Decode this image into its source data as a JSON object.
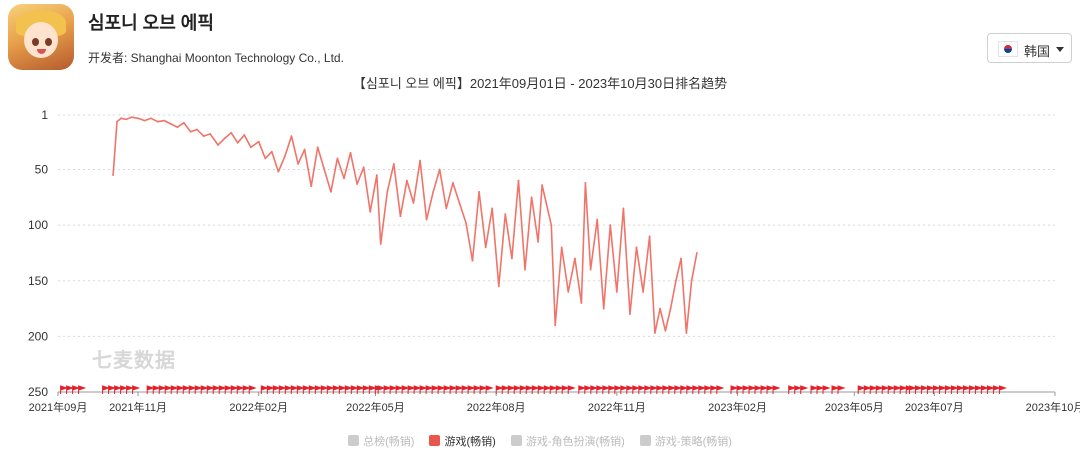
{
  "header": {
    "app_title": "심포니 오브 에픽",
    "developer": "开发者: Shanghai Moonton Technology Co., Ltd.",
    "country": "韩国"
  },
  "chart_data": {
    "type": "line",
    "title": "【심포니 오브 에픽】2021年09月01日 - 2023年10月30日排名趋势",
    "xlabel": "",
    "ylabel": "",
    "y_reversed": true,
    "ylim": [
      1,
      250
    ],
    "y_ticks": [
      "1",
      "50",
      "100",
      "150",
      "200",
      "250"
    ],
    "x_ticks": [
      "2021年09月",
      "2021年11月",
      "2022年02月",
      "2022年05月",
      "2022年08月",
      "2022年11月",
      "2023年02月",
      "2023年05月",
      "2023年07月",
      "2023年10月"
    ],
    "grid": true,
    "line_color": "#f07469",
    "series": [
      {
        "name": "游戏(畅销)",
        "points": [
          [
            "2021-10-13",
            55
          ],
          [
            "2021-10-16",
            7
          ],
          [
            "2021-10-19",
            4
          ],
          [
            "2021-10-23",
            5
          ],
          [
            "2021-10-27",
            3
          ],
          [
            "2021-11-01",
            4
          ],
          [
            "2021-11-06",
            6
          ],
          [
            "2021-11-11",
            4
          ],
          [
            "2021-11-16",
            7
          ],
          [
            "2021-11-21",
            6
          ],
          [
            "2021-11-26",
            9
          ],
          [
            "2021-12-01",
            12
          ],
          [
            "2021-12-06",
            8
          ],
          [
            "2021-12-11",
            16
          ],
          [
            "2021-12-16",
            14
          ],
          [
            "2021-12-21",
            20
          ],
          [
            "2021-12-26",
            18
          ],
          [
            "2022-01-01",
            28
          ],
          [
            "2022-01-06",
            22
          ],
          [
            "2022-01-11",
            17
          ],
          [
            "2022-01-16",
            26
          ],
          [
            "2022-01-21",
            19
          ],
          [
            "2022-01-26",
            30
          ],
          [
            "2022-02-01",
            25
          ],
          [
            "2022-02-06",
            40
          ],
          [
            "2022-02-11",
            34
          ],
          [
            "2022-02-16",
            52
          ],
          [
            "2022-02-21",
            38
          ],
          [
            "2022-02-26",
            20
          ],
          [
            "2022-03-03",
            45
          ],
          [
            "2022-03-08",
            32
          ],
          [
            "2022-03-13",
            65
          ],
          [
            "2022-03-18",
            30
          ],
          [
            "2022-03-23",
            50
          ],
          [
            "2022-03-28",
            70
          ],
          [
            "2022-04-02",
            40
          ],
          [
            "2022-04-07",
            58
          ],
          [
            "2022-04-12",
            35
          ],
          [
            "2022-04-17",
            63
          ],
          [
            "2022-04-22",
            48
          ],
          [
            "2022-04-27",
            88
          ],
          [
            "2022-05-02",
            55
          ],
          [
            "2022-05-05",
            117
          ],
          [
            "2022-05-10",
            70
          ],
          [
            "2022-05-15",
            45
          ],
          [
            "2022-05-20",
            92
          ],
          [
            "2022-05-25",
            60
          ],
          [
            "2022-05-30",
            80
          ],
          [
            "2022-06-04",
            42
          ],
          [
            "2022-06-09",
            95
          ],
          [
            "2022-06-14",
            70
          ],
          [
            "2022-06-19",
            50
          ],
          [
            "2022-06-24",
            85
          ],
          [
            "2022-06-29",
            62
          ],
          [
            "2022-07-04",
            80
          ],
          [
            "2022-07-09",
            98
          ],
          [
            "2022-07-14",
            132
          ],
          [
            "2022-07-19",
            70
          ],
          [
            "2022-07-24",
            120
          ],
          [
            "2022-07-29",
            85
          ],
          [
            "2022-08-03",
            155
          ],
          [
            "2022-08-08",
            90
          ],
          [
            "2022-08-13",
            130
          ],
          [
            "2022-08-18",
            60
          ],
          [
            "2022-08-23",
            140
          ],
          [
            "2022-08-28",
            75
          ],
          [
            "2022-09-02",
            115
          ],
          [
            "2022-09-05",
            64
          ],
          [
            "2022-09-12",
            100
          ],
          [
            "2022-09-15",
            190
          ],
          [
            "2022-09-20",
            120
          ],
          [
            "2022-09-25",
            160
          ],
          [
            "2022-09-30",
            130
          ],
          [
            "2022-10-05",
            170
          ],
          [
            "2022-10-08",
            62
          ],
          [
            "2022-10-12",
            140
          ],
          [
            "2022-10-17",
            95
          ],
          [
            "2022-10-22",
            175
          ],
          [
            "2022-10-27",
            100
          ],
          [
            "2022-11-01",
            160
          ],
          [
            "2022-11-06",
            85
          ],
          [
            "2022-11-11",
            180
          ],
          [
            "2022-11-16",
            120
          ],
          [
            "2022-11-21",
            160
          ],
          [
            "2022-11-26",
            110
          ],
          [
            "2022-11-30",
            197
          ],
          [
            "2022-12-04",
            175
          ],
          [
            "2022-12-08",
            195
          ],
          [
            "2022-12-12",
            175
          ],
          [
            "2022-12-16",
            150
          ],
          [
            "2022-12-20",
            130
          ],
          [
            "2022-12-24",
            197
          ],
          [
            "2022-12-28",
            150
          ],
          [
            "2023-01-01",
            125
          ]
        ]
      }
    ],
    "legend": [
      "总榜(畅销)",
      "游戏(畅销)",
      "游戏-角色扮演(畅销)",
      "游戏-策略(畅销)"
    ],
    "legend_active": "游戏(畅销)",
    "legend_placement": "bottom"
  },
  "watermark": "七麦数据"
}
